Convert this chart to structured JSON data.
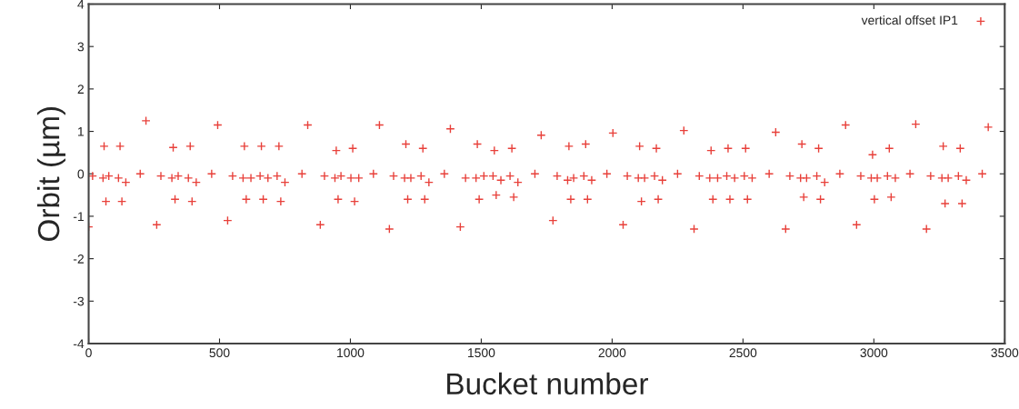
{
  "chart_data": {
    "type": "scatter",
    "xlabel": "Bucket number",
    "ylabel": "Orbit (µm)",
    "xlim": [
      0,
      3500
    ],
    "ylim": [
      -4,
      4
    ],
    "xticks": [
      0,
      500,
      1000,
      1500,
      2000,
      2500,
      3000,
      3500
    ],
    "yticks": [
      -4,
      -3,
      -2,
      -1,
      0,
      1,
      2,
      3,
      4
    ],
    "grid": false,
    "legend": "top right",
    "marker": "cross",
    "series": [
      {
        "name": "vertical offset IP1",
        "color": "#e8403a",
        "x": [
          0,
          15,
          55,
          59,
          66,
          77,
          114,
          120,
          127,
          142,
          197,
          219,
          260,
          276,
          318,
          323,
          330,
          342,
          381,
          388,
          395,
          411,
          470,
          493,
          531,
          550,
          590,
          595,
          602,
          620,
          655,
          660,
          667,
          685,
          720,
          727,
          734,
          750,
          815,
          837,
          885,
          901,
          941,
          946,
          953,
          964,
          1002,
          1009,
          1016,
          1032,
          1088,
          1111,
          1149,
          1165,
          1207,
          1212,
          1219,
          1231,
          1270,
          1277,
          1284,
          1300,
          1359,
          1382,
          1420,
          1440,
          1480,
          1485,
          1492,
          1510,
          1545,
          1550,
          1557,
          1575,
          1610,
          1617,
          1624,
          1640,
          1705,
          1729,
          1774,
          1790,
          1830,
          1835,
          1842,
          1853,
          1892,
          1899,
          1906,
          1922,
          1980,
          2003,
          2042,
          2058,
          2100,
          2105,
          2112,
          2124,
          2162,
          2169,
          2176,
          2192,
          2250,
          2274,
          2313,
          2333,
          2373,
          2378,
          2385,
          2403,
          2438,
          2443,
          2450,
          2468,
          2505,
          2510,
          2517,
          2535,
          2600,
          2625,
          2663,
          2679,
          2720,
          2725,
          2732,
          2743,
          2782,
          2789,
          2796,
          2812,
          2870,
          2892,
          2934,
          2950,
          2990,
          2995,
          3002,
          3013,
          3052,
          3059,
          3066,
          3082,
          3138,
          3160,
          3201,
          3217,
          3260,
          3265,
          3272,
          3284,
          3323,
          3330,
          3337,
          3353,
          3414,
          3437
        ],
        "values": [
          -1.25,
          -0.05,
          -0.1,
          0.65,
          -0.65,
          -0.05,
          -0.1,
          0.65,
          -0.65,
          -0.2,
          0.0,
          1.25,
          -1.2,
          -0.05,
          -0.1,
          0.62,
          -0.6,
          -0.05,
          -0.1,
          0.65,
          -0.65,
          -0.2,
          0.0,
          1.15,
          -1.1,
          -0.05,
          -0.1,
          0.65,
          -0.6,
          -0.1,
          -0.05,
          0.65,
          -0.6,
          -0.1,
          -0.05,
          0.65,
          -0.65,
          -0.2,
          0.0,
          1.15,
          -1.2,
          -0.05,
          -0.1,
          0.55,
          -0.6,
          -0.05,
          -0.1,
          0.6,
          -0.65,
          -0.1,
          0.0,
          1.15,
          -1.3,
          -0.05,
          -0.1,
          0.7,
          -0.6,
          -0.1,
          -0.05,
          0.6,
          -0.6,
          -0.2,
          0.0,
          1.06,
          -1.25,
          -0.1,
          -0.1,
          0.7,
          -0.6,
          -0.05,
          -0.05,
          0.55,
          -0.5,
          -0.15,
          -0.05,
          0.6,
          -0.55,
          -0.2,
          0.0,
          0.91,
          -1.1,
          -0.05,
          -0.15,
          0.65,
          -0.6,
          -0.1,
          -0.05,
          0.7,
          -0.6,
          -0.15,
          0.0,
          0.96,
          -1.2,
          -0.05,
          -0.1,
          0.65,
          -0.65,
          -0.1,
          -0.05,
          0.6,
          -0.6,
          -0.15,
          0.0,
          1.02,
          -1.3,
          -0.05,
          -0.1,
          0.55,
          -0.6,
          -0.1,
          -0.05,
          0.6,
          -0.6,
          -0.1,
          -0.05,
          0.6,
          -0.6,
          -0.1,
          0.0,
          0.98,
          -1.3,
          -0.05,
          -0.1,
          0.7,
          -0.55,
          -0.1,
          -0.05,
          0.6,
          -0.6,
          -0.2,
          0.0,
          1.15,
          -1.2,
          -0.05,
          -0.1,
          0.45,
          -0.6,
          -0.1,
          -0.05,
          0.6,
          -0.55,
          -0.1,
          0.0,
          1.17,
          -1.3,
          -0.05,
          -0.1,
          0.65,
          -0.7,
          -0.1,
          -0.05,
          0.6,
          -0.7,
          -0.15,
          0.0,
          1.1
        ]
      }
    ]
  }
}
